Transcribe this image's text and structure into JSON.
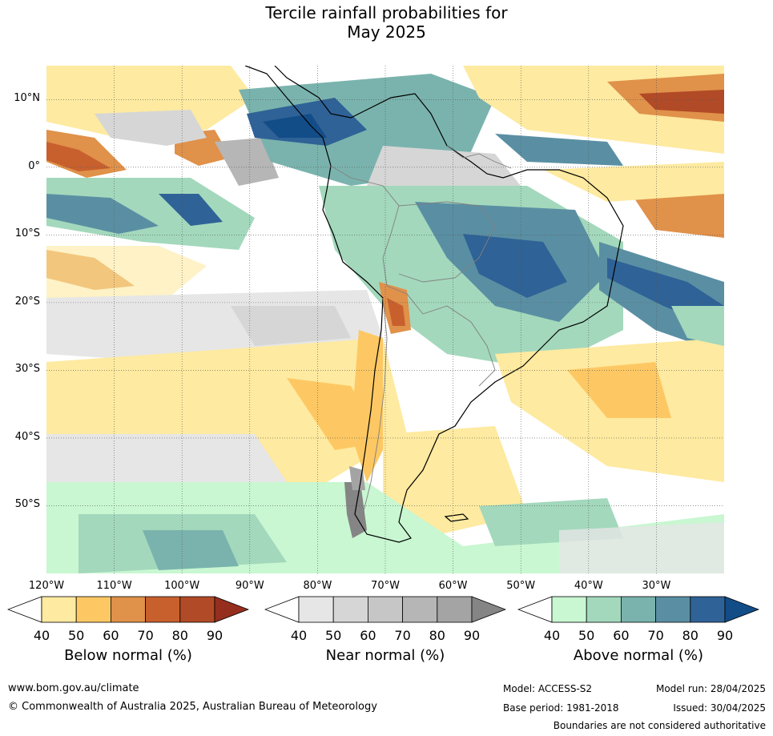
{
  "title": [
    "Tercile rainfall probabilities for",
    "May 2025"
  ],
  "map": {
    "lat_labels": [
      "10°N",
      "0°",
      "10°S",
      "20°S",
      "30°S",
      "40°S",
      "50°S"
    ],
    "lat_values": [
      10,
      0,
      -10,
      -20,
      -30,
      -40,
      -50
    ],
    "lon_labels": [
      "120°W",
      "110°W",
      "100°W",
      "90°W",
      "80°W",
      "70°W",
      "60°W",
      "50°W",
      "40°W",
      "30°W"
    ],
    "lon_values": [
      -120,
      -110,
      -100,
      -90,
      -80,
      -70,
      -60,
      -50,
      -40,
      -30
    ],
    "extent": {
      "lon_min": -120,
      "lon_max": -20,
      "lat_min": -60,
      "lat_max": 15
    }
  },
  "legends": [
    {
      "title": "Below normal (%)",
      "ticks": [
        "40",
        "50",
        "60",
        "70",
        "80",
        "90"
      ],
      "colors": [
        "#ffffff",
        "#feeaa0",
        "#fdc863",
        "#e0914a",
        "#c8602e",
        "#b14a26",
        "#962e1e"
      ]
    },
    {
      "title": "Near normal (%)",
      "ticks": [
        "40",
        "50",
        "60",
        "70",
        "80",
        "90"
      ],
      "colors": [
        "#ffffff",
        "#e6e6e6",
        "#d6d6d6",
        "#c6c6c6",
        "#b6b6b6",
        "#a4a4a4",
        "#858585"
      ]
    },
    {
      "title": "Above normal (%)",
      "ticks": [
        "40",
        "50",
        "60",
        "70",
        "80",
        "90"
      ],
      "colors": [
        "#ffffff",
        "#c8f7d1",
        "#a3d8bc",
        "#7ab3ad",
        "#5a8fa3",
        "#2f6296",
        "#134d88"
      ]
    }
  ],
  "footer": {
    "website": "www.bom.gov.au/climate",
    "copyright": "© Commonwealth of Australia 2025, Australian Bureau of Meteorology",
    "model": "Model: ACCESS-S2",
    "model_run": "Model run: 28/04/2025",
    "base_period": "Base period: 1981-2018",
    "issued": "Issued: 30/04/2025",
    "disclaimer": "Boundaries are not considered authoritative"
  }
}
